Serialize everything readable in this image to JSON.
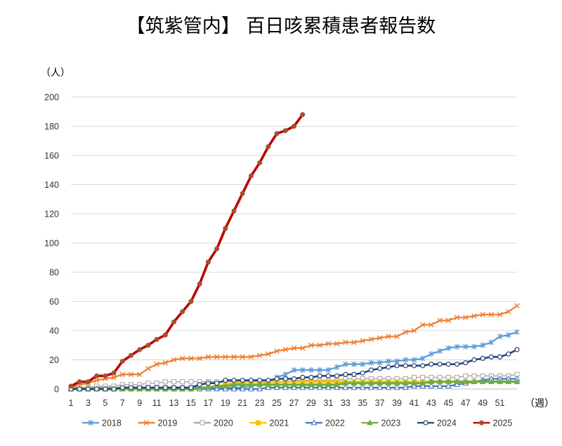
{
  "chart_data": {
    "type": "line",
    "title": "【筑紫管内】 百日咳累積患者報告数",
    "ylabel": "（人）",
    "xlabel": "（週）",
    "ylim": [
      0,
      200
    ],
    "xlim": [
      1,
      53
    ],
    "yticks": [
      0,
      20,
      40,
      60,
      80,
      100,
      120,
      140,
      160,
      180,
      200
    ],
    "xticks": [
      1,
      3,
      5,
      7,
      9,
      11,
      13,
      15,
      17,
      19,
      21,
      23,
      25,
      27,
      29,
      31,
      33,
      35,
      37,
      39,
      41,
      43,
      45,
      47,
      49,
      51
    ],
    "grid": "horizontal",
    "legend": "bottom",
    "series": [
      {
        "name": "2018",
        "color": "#5b9bd5",
        "marker": "star",
        "values": [
          1,
          1,
          1,
          1,
          1,
          1,
          1,
          1,
          1,
          1,
          1,
          1,
          1,
          1,
          1,
          1,
          1,
          1,
          1,
          1,
          1,
          2,
          3,
          4,
          8,
          10,
          13,
          13,
          13,
          13,
          13,
          15,
          17,
          17,
          17,
          18,
          18,
          19,
          19,
          20,
          20,
          21,
          24,
          26,
          28,
          29,
          29,
          29,
          30,
          32,
          36,
          37,
          39
        ]
      },
      {
        "name": "2019",
        "color": "#ed7d31",
        "marker": "x",
        "values": [
          1,
          3,
          4,
          6,
          7,
          8,
          10,
          10,
          10,
          14,
          17,
          18,
          20,
          21,
          21,
          21,
          22,
          22,
          22,
          22,
          22,
          22,
          23,
          24,
          26,
          27,
          28,
          28,
          30,
          30,
          31,
          31,
          32,
          32,
          33,
          34,
          35,
          36,
          36,
          39,
          40,
          44,
          44,
          47,
          47,
          49,
          49,
          50,
          51,
          51,
          51,
          53,
          57
        ]
      },
      {
        "name": "2020",
        "color": "#a5a5a5",
        "marker": "square",
        "values": [
          1,
          1,
          1,
          2,
          2,
          2,
          3,
          3,
          3,
          4,
          4,
          5,
          5,
          5,
          5,
          5,
          5,
          5,
          5,
          5,
          5,
          5,
          5,
          5,
          5,
          5,
          6,
          6,
          6,
          6,
          6,
          6,
          7,
          7,
          7,
          7,
          7,
          7,
          7,
          7,
          8,
          8,
          8,
          8,
          8,
          8,
          9,
          9,
          9,
          9,
          9,
          9,
          10
        ]
      },
      {
        "name": "2021",
        "color": "#ffc000",
        "marker": "square-filled",
        "values": [
          0,
          0,
          0,
          0,
          0,
          0,
          0,
          0,
          0,
          0,
          0,
          0,
          0,
          0,
          0,
          0,
          1,
          2,
          3,
          4,
          5,
          5,
          5,
          5,
          5,
          5,
          5,
          5,
          5,
          5,
          5,
          5,
          5,
          5,
          5,
          5,
          5,
          5,
          5,
          5,
          5,
          5,
          5,
          5,
          5,
          5,
          5,
          5,
          5,
          5,
          5,
          5,
          5
        ]
      },
      {
        "name": "2022",
        "color": "#4472c4",
        "marker": "triangle",
        "values": [
          0,
          0,
          0,
          0,
          0,
          0,
          0,
          0,
          0,
          0,
          0,
          0,
          0,
          0,
          0,
          0,
          0,
          0,
          0,
          0,
          0,
          0,
          0,
          1,
          1,
          1,
          1,
          1,
          1,
          1,
          1,
          1,
          1,
          1,
          1,
          1,
          1,
          1,
          1,
          1,
          2,
          2,
          2,
          2,
          2,
          3,
          4,
          5,
          6,
          7,
          7,
          7,
          7
        ]
      },
      {
        "name": "2023",
        "color": "#70ad47",
        "marker": "triangle-filled",
        "values": [
          0,
          0,
          0,
          0,
          0,
          0,
          0,
          0,
          0,
          0,
          0,
          0,
          0,
          0,
          0,
          1,
          1,
          2,
          2,
          3,
          3,
          3,
          3,
          3,
          3,
          3,
          3,
          3,
          3,
          3,
          3,
          3,
          4,
          4,
          4,
          4,
          4,
          4,
          4,
          4,
          4,
          4,
          5,
          5,
          5,
          5,
          5,
          5,
          5,
          5,
          5,
          5,
          5
        ]
      },
      {
        "name": "2024",
        "color": "#264478",
        "marker": "circle",
        "values": [
          0,
          0,
          0,
          0,
          0,
          0,
          1,
          1,
          1,
          1,
          1,
          1,
          1,
          1,
          1,
          3,
          4,
          4,
          6,
          6,
          6,
          6,
          6,
          6,
          7,
          7,
          7,
          8,
          8,
          9,
          9,
          9,
          10,
          10,
          11,
          13,
          14,
          15,
          16,
          16,
          16,
          16,
          17,
          17,
          17,
          17,
          18,
          20,
          21,
          22,
          22,
          24,
          27
        ]
      },
      {
        "name": "2025",
        "color": "#c00000",
        "marker": "circle-filled",
        "values": [
          2,
          5,
          5,
          9,
          9,
          11,
          19,
          23,
          27,
          30,
          34,
          37,
          46,
          53,
          60,
          72,
          87,
          96,
          110,
          122,
          134,
          146,
          155,
          166,
          175,
          177,
          180,
          188
        ]
      }
    ]
  }
}
